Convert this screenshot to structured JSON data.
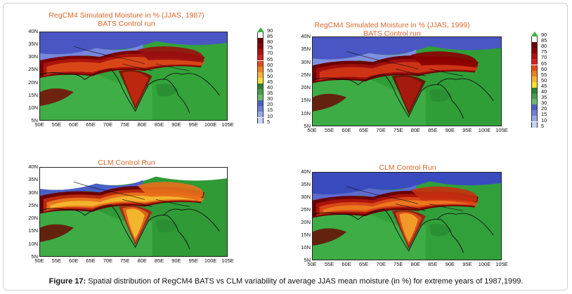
{
  "legend_levels": [
    "90",
    "85",
    "80",
    "75",
    "70",
    "65",
    "60",
    "55",
    "50",
    "45",
    "40",
    "35",
    "30",
    "20",
    "15",
    "10",
    "5"
  ],
  "legend_colors": [
    "#3cb043",
    "#ffffff",
    "#6b0000",
    "#8b0000",
    "#b01010",
    "#d42020",
    "#e64a19",
    "#f08020",
    "#f9b233",
    "#f5e030",
    "#2e7d32",
    "#43a047",
    "#66bb6a",
    "#4a5fc1",
    "#6f7fd6",
    "#9aa6e8",
    "#c9d0f5"
  ],
  "x_ticks": [
    "50E",
    "55E",
    "60E",
    "65E",
    "70E",
    "75E",
    "80E",
    "85E",
    "90E",
    "95E",
    "100E",
    "105E"
  ],
  "y_ticks": [
    "40N",
    "35N",
    "30N",
    "25N",
    "20N",
    "15N",
    "10N",
    "5N"
  ],
  "panels": [
    {
      "id": "tl",
      "title_line1": "RegCM4 Simulated Moisture in %  (JJAS, 1987)",
      "title_line2": "BATS Control run"
    },
    {
      "id": "tr",
      "title_line1": "RegCM4 Simulated Moisture in %  (JJAS, 1999)",
      "title_line2": "BATS Control run"
    },
    {
      "id": "bl",
      "title_line1": "CLM Control Run",
      "title_line2": ""
    },
    {
      "id": "br",
      "title_line1": "CLM Control Run",
      "title_line2": ""
    }
  ],
  "caption": {
    "label": "Figure 17:",
    "text": " Spatial distribution of RegCM4 BATS vs CLM variability of average JJAS mean moisture (in %) for extreme years of 1987,1999."
  },
  "chart_data": [
    {
      "type": "heatmap",
      "title": "RegCM4 Simulated Moisture in %  (JJAS, 1987)",
      "subtitle": "BATS Control run",
      "x_ticks": [
        "50E",
        "55E",
        "60E",
        "65E",
        "70E",
        "75E",
        "80E",
        "85E",
        "90E",
        "95E",
        "100E",
        "105E"
      ],
      "y_ticks": [
        "40N",
        "35N",
        "30N",
        "25N",
        "20N",
        "15N",
        "10N",
        "5N"
      ],
      "xlim": [
        50,
        105
      ],
      "ylim": [
        5,
        40
      ],
      "legend_levels": [
        5,
        10,
        15,
        20,
        30,
        35,
        40,
        45,
        50,
        55,
        60,
        65,
        70,
        75,
        80,
        85,
        90
      ]
    },
    {
      "type": "heatmap",
      "title": "RegCM4 Simulated Moisture in %  (JJAS, 1999)",
      "subtitle": "BATS Control run",
      "x_ticks": [
        "50E",
        "55E",
        "60E",
        "65E",
        "70E",
        "75E",
        "80E",
        "85E",
        "90E",
        "95E",
        "100E",
        "105E"
      ],
      "y_ticks": [
        "40N",
        "35N",
        "30N",
        "25N",
        "20N",
        "15N",
        "10N",
        "5N"
      ],
      "xlim": [
        50,
        105
      ],
      "ylim": [
        5,
        40
      ],
      "legend_levels": [
        5,
        10,
        15,
        20,
        30,
        35,
        40,
        45,
        50,
        55,
        60,
        65,
        70,
        75,
        80,
        85,
        90
      ]
    },
    {
      "type": "heatmap",
      "title": "CLM Control Run",
      "x_ticks": [
        "50E",
        "55E",
        "60E",
        "65E",
        "70E",
        "75E",
        "80E",
        "85E",
        "90E",
        "95E",
        "100E",
        "105E"
      ],
      "y_ticks": [
        "40N",
        "35N",
        "30N",
        "25N",
        "20N",
        "15N",
        "10N",
        "5N"
      ],
      "xlim": [
        50,
        105
      ],
      "ylim": [
        5,
        40
      ]
    },
    {
      "type": "heatmap",
      "title": "CLM Control Run",
      "x_ticks": [
        "50E",
        "55E",
        "60E",
        "65E",
        "70E",
        "75E",
        "80E",
        "85E",
        "90E",
        "95E",
        "100E",
        "105E"
      ],
      "y_ticks": [
        "40N",
        "35N",
        "30N",
        "25N",
        "20N",
        "15N",
        "10N",
        "5N"
      ],
      "xlim": [
        50,
        105
      ],
      "ylim": [
        5,
        40
      ]
    }
  ]
}
